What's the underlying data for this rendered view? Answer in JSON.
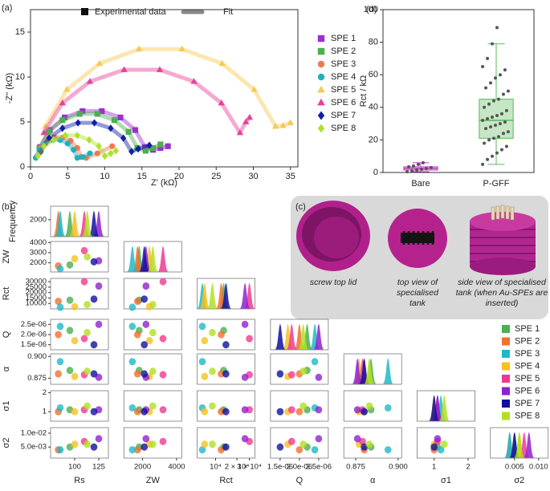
{
  "chart_data": [
    {
      "type": "scatter",
      "panel_label": "(a)",
      "xlabel": "Z' (kΩ)",
      "ylabel": "-Z'' (kΩ)",
      "legend_markers": "Experimental data",
      "legend_fit": "Fit",
      "xlim": [
        0,
        36
      ],
      "xticks": [
        0,
        5,
        10,
        15,
        20,
        25,
        30,
        35
      ],
      "ylim": [
        0,
        17.5
      ],
      "yticks": [
        0,
        5,
        10,
        15
      ],
      "series": [
        {
          "name": "SPE 1",
          "color": "#9b30d0",
          "marker": "square",
          "x": [
            1.3,
            2.6,
            4.6,
            7.0,
            9.6,
            12.1,
            14.1,
            15.4,
            16.5,
            17.5,
            18.5
          ],
          "values": [
            2.2,
            4.1,
            5.5,
            6.2,
            6.2,
            5.5,
            4.1,
            2.2,
            1.9,
            2.1,
            2.3
          ]
        },
        {
          "name": "SPE 2",
          "color": "#4caf50",
          "marker": "square",
          "x": [
            1.2,
            2.4,
            4.3,
            6.6,
            9.0,
            11.3,
            13.2,
            14.4,
            15.5,
            16.5,
            17.5
          ],
          "values": [
            2.1,
            3.9,
            5.2,
            5.9,
            5.9,
            5.2,
            3.9,
            2.1,
            1.8,
            2.1,
            2.5
          ]
        },
        {
          "name": "SPE 3",
          "color": "#f07850",
          "marker": "circle",
          "x": [
            0.8,
            1.3,
            2.2,
            3.2,
            4.4,
            5.4,
            6.3,
            6.8,
            7.5,
            9,
            11
          ],
          "values": [
            1.1,
            2.1,
            2.9,
            3.3,
            3.3,
            2.9,
            2.1,
            1.1,
            1.0,
            1.5,
            2.3
          ]
        },
        {
          "name": "SPE 4",
          "color": "#20b0c0",
          "marker": "circle",
          "x": [
            0.7,
            1.2,
            2.0,
            3.0,
            4.0,
            5.0,
            5.8,
            6.3,
            7,
            8
          ],
          "values": [
            1.0,
            1.9,
            2.6,
            3.0,
            3.0,
            2.6,
            1.9,
            1.0,
            1.1,
            1.5
          ]
        },
        {
          "name": "SPE 5",
          "color": "#f8c850",
          "marker": "triangle",
          "x": [
            2.0,
            4.9,
            9.3,
            14.6,
            20.4,
            25.8,
            30.1,
            33.0,
            34,
            35
          ],
          "values": [
            4.5,
            8.6,
            11.5,
            13.1,
            13.1,
            11.5,
            8.6,
            4.5,
            4.6,
            4.9
          ]
        },
        {
          "name": "SPE 6",
          "color": "#e8409a",
          "marker": "triangle",
          "x": [
            1.8,
            4.3,
            8.0,
            12.6,
            17.4,
            22.0,
            25.7,
            28.2,
            29,
            29.5
          ],
          "values": [
            3.8,
            7.1,
            9.5,
            10.8,
            10.8,
            9.5,
            7.1,
            3.8,
            5.0,
            5.5
          ]
        },
        {
          "name": "SPE 7",
          "color": "#1020a0",
          "marker": "diamond",
          "x": [
            1.4,
            2.5,
            4.3,
            6.4,
            8.6,
            10.8,
            12.5,
            13.6,
            14.5,
            16
          ],
          "values": [
            1.7,
            3.2,
            4.3,
            4.9,
            4.9,
            4.3,
            3.2,
            1.7,
            2.0,
            2.4
          ]
        },
        {
          "name": "SPE 8",
          "color": "#b0e030",
          "marker": "diamond",
          "x": [
            1.0,
            1.8,
            3.1,
            4.7,
            6.3,
            7.9,
            9.2,
            10.0,
            10.8,
            11.5
          ],
          "values": [
            1.2,
            2.3,
            3.0,
            3.5,
            3.5,
            3.0,
            2.3,
            1.2,
            1.5,
            1.8
          ]
        }
      ]
    },
    {
      "type": "corner",
      "panel_label": "(b)",
      "hist_ylabel": "Frequency",
      "hist_ylim": [
        0,
        3600
      ],
      "hist_yticks": [
        2000
      ],
      "params": [
        {
          "name": "Rs",
          "xlim": [
            75,
            135
          ],
          "xticks": [
            100,
            125
          ]
        },
        {
          "name": "ZW",
          "xlim": [
            900,
            4300
          ],
          "xticks": [
            2000,
            4000
          ],
          "ylim": [
            1100,
            4100
          ],
          "yticks": [
            2000,
            3000,
            4000
          ]
        },
        {
          "name": "Rct",
          "xlog": true,
          "xlim": [
            5500,
            36000
          ],
          "xticks": [
            {
              "value": 10000,
              "label": "10⁴"
            },
            {
              "value": 20000,
              "label": "2 × 10⁴"
            },
            {
              "value": 30000,
              "label": "3 × 10⁴"
            }
          ],
          "ylim": [
            5000,
            33000
          ],
          "yticks": [
            10000,
            15000,
            20000,
            25000,
            30000
          ]
        },
        {
          "name": "Q",
          "xlim": [
            1.25e-06,
            2.75e-06
          ],
          "xticks": [
            {
              "value": 1.5e-06,
              "label": "1.5e-06"
            },
            {
              "value": 2e-06,
              "label": "2.0e-06"
            },
            {
              "value": 2.5e-06,
              "label": "2.5e-06"
            }
          ],
          "ylim": [
            1.25e-06,
            2.75e-06
          ],
          "yticks": [
            {
              "value": 1.5e-06,
              "label": "1.5e-06"
            },
            {
              "value": 2e-06,
              "label": "2.0e-06"
            },
            {
              "value": 2.5e-06,
              "label": "2.5e-06"
            }
          ]
        },
        {
          "name": "α",
          "xlim": [
            0.868,
            0.902
          ],
          "xticks": [
            0.875,
            {
              "value": 0.9,
              "label": "0.900"
            }
          ],
          "ylim": [
            0.868,
            0.903
          ],
          "yticks": [
            0.875,
            {
              "value": 0.9,
              "label": "0.900"
            }
          ]
        },
        {
          "name": "σ1",
          "xlim": [
            0.5,
            2.2
          ],
          "xticks": [
            1,
            2
          ],
          "ylim": [
            0.5,
            2.1
          ],
          "yticks": [
            1,
            2
          ]
        },
        {
          "name": "σ2",
          "xlim": [
            0,
            0.012
          ],
          "xticks": [
            0.005,
            {
              "value": 0.01,
              "label": "0.010"
            }
          ],
          "ylim": [
            0.001,
            0.012
          ],
          "yticks": [
            {
              "value": 0.005,
              "label": "5.0e-03"
            },
            {
              "value": 0.01,
              "label": "1.0e-02"
            }
          ]
        }
      ],
      "series": [
        {
          "name": "SPE 1",
          "color": "#4caf50",
          "values": [
            95,
            1800,
            13000,
            2.2e-06,
            0.884,
            1.1,
            0.005
          ]
        },
        {
          "name": "SPE 2",
          "color": "#f07030",
          "values": [
            83,
            1700,
            12000,
            2e-06,
            0.88,
            1.0,
            0.004
          ]
        },
        {
          "name": "SPE 3",
          "color": "#20b8c8",
          "values": [
            85,
            1400,
            6500,
            2.4e-06,
            0.894,
            1.2,
            0.004
          ]
        },
        {
          "name": "SPE 4",
          "color": "#f5c020",
          "values": [
            100,
            2400,
            7000,
            1.7e-06,
            0.877,
            1.0,
            0.006
          ]
        },
        {
          "name": "SPE 5",
          "color": "#f03890",
          "values": [
            110,
            3200,
            30000,
            1.8e-06,
            0.879,
            1.1,
            0.007
          ]
        },
        {
          "name": "SPE 6",
          "color": "#9020d0",
          "values": [
            125,
            2200,
            26000,
            2.5e-06,
            0.876,
            1.1,
            0.008
          ]
        },
        {
          "name": "SPE 7",
          "color": "#1010a0",
          "values": [
            120,
            2100,
            14000,
            1.5e-06,
            0.88,
            1.0,
            0.005
          ]
        },
        {
          "name": "SPE 8",
          "color": "#b0e020",
          "values": [
            113,
            2600,
            9000,
            2.1e-06,
            0.883,
            1.3,
            0.006
          ]
        }
      ]
    },
    {
      "type": "box",
      "panel_label": "(d)",
      "ylabel": "Rct / kΩ",
      "categories": [
        "Bare",
        "P-GFF"
      ],
      "colors": [
        "#c040c0",
        "#5cb85c"
      ],
      "ylim": [
        0,
        100
      ],
      "yticks": [
        0,
        20,
        40,
        60,
        80,
        100
      ],
      "boxes": [
        {
          "min": 0.5,
          "q1": 1.5,
          "median": 2.5,
          "q3": 3.5,
          "max": 6,
          "points": [
            0.5,
            1,
            1.5,
            2,
            2.5,
            3,
            3.5,
            4,
            5,
            6
          ]
        },
        {
          "min": 5,
          "q1": 21,
          "median": 32,
          "q3": 45,
          "max": 79,
          "points": [
            5,
            8,
            10,
            12,
            14,
            16,
            18,
            20,
            21,
            22,
            24,
            25,
            27,
            28,
            29,
            30,
            31,
            32,
            33,
            34,
            35,
            36,
            38,
            40,
            42,
            44,
            45,
            48,
            50,
            52,
            55,
            58,
            60,
            63,
            65,
            70,
            79,
            89
          ]
        }
      ]
    }
  ],
  "panel_c": {
    "label": "(c)",
    "captions": [
      [
        "screw top lid"
      ],
      [
        "top view of",
        "specialised",
        "tank"
      ],
      [
        "side view of specialised",
        "tank (when Au-SPEs are",
        "inserted)"
      ]
    ]
  }
}
